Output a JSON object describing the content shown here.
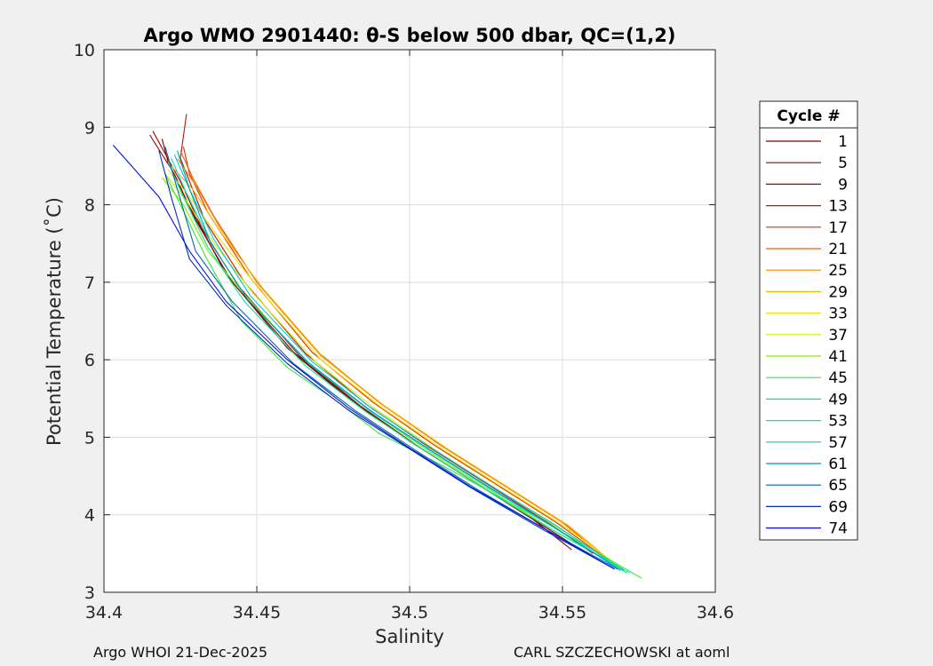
{
  "chart_data": {
    "type": "line",
    "title": "Argo WMO 2901440: θ-S below 500 dbar,  QC=(1,2)",
    "xlabel": "Salinity",
    "ylabel": "Potential Temperature (˚C)",
    "xlim": [
      34.4,
      34.6
    ],
    "ylim": [
      3,
      10
    ],
    "xticks": [
      34.4,
      34.45,
      34.5,
      34.55,
      34.6
    ],
    "xtick_labels": [
      "34.4",
      "34.45",
      "34.5",
      "34.55",
      "34.6"
    ],
    "yticks": [
      3,
      4,
      5,
      6,
      7,
      8,
      9,
      10
    ],
    "ytick_labels": [
      "3",
      "4",
      "5",
      "6",
      "7",
      "8",
      "9",
      "10"
    ],
    "grid": true,
    "legend_title": "Cycle #",
    "legend_position": "right-outside",
    "series": [
      {
        "name": "1",
        "color": "#7a0000",
        "x": [
          34.419,
          34.421,
          34.427,
          34.44,
          34.46,
          34.48,
          34.5,
          34.52,
          34.54,
          34.553
        ],
        "y": [
          8.85,
          8.55,
          8.05,
          7.1,
          6.15,
          5.5,
          4.95,
          4.45,
          3.95,
          3.55
        ]
      },
      {
        "name": "5",
        "color": "#8f0000",
        "x": [
          34.415,
          34.423,
          34.43,
          34.442,
          34.462,
          34.482,
          34.502,
          34.522,
          34.542,
          34.556
        ],
        "y": [
          8.9,
          8.4,
          7.8,
          7.0,
          6.1,
          5.45,
          4.9,
          4.4,
          3.9,
          3.55
        ]
      },
      {
        "name": "9",
        "color": "#a80000",
        "x": [
          34.416,
          34.425,
          34.432,
          34.444,
          34.464,
          34.484,
          34.504,
          34.524,
          34.544,
          34.558
        ],
        "y": [
          8.95,
          8.3,
          7.7,
          6.95,
          6.05,
          5.4,
          4.85,
          4.35,
          3.85,
          3.5
        ]
      },
      {
        "name": "13",
        "color": "#c41000",
        "x": [
          34.427,
          34.425,
          34.433,
          34.446,
          34.466,
          34.486,
          34.506,
          34.526,
          34.546,
          34.56
        ],
        "y": [
          9.17,
          8.6,
          7.8,
          7.0,
          6.08,
          5.42,
          4.88,
          4.38,
          3.88,
          3.5
        ]
      },
      {
        "name": "17",
        "color": "#dc3000",
        "x": [
          34.426,
          34.428,
          34.434,
          34.448,
          34.468,
          34.488,
          34.508,
          34.528,
          34.548,
          34.562
        ],
        "y": [
          8.75,
          8.4,
          7.9,
          7.05,
          6.1,
          5.45,
          4.9,
          4.4,
          3.9,
          3.5
        ]
      },
      {
        "name": "21",
        "color": "#ee5a00",
        "x": [
          34.425,
          34.429,
          34.436,
          34.45,
          34.47,
          34.49,
          34.51,
          34.53,
          34.55,
          34.564
        ],
        "y": [
          8.7,
          8.35,
          7.85,
          7.0,
          6.1,
          5.45,
          4.9,
          4.4,
          3.9,
          3.45
        ]
      },
      {
        "name": "25",
        "color": "#f58800",
        "x": [
          34.424,
          34.43,
          34.438,
          34.451,
          34.471,
          34.491,
          34.511,
          34.531,
          34.551,
          34.565
        ],
        "y": [
          8.6,
          8.25,
          7.7,
          6.95,
          6.05,
          5.42,
          4.88,
          4.38,
          3.88,
          3.42
        ]
      },
      {
        "name": "29",
        "color": "#f8b400",
        "x": [
          34.422,
          34.429,
          34.439,
          34.452,
          34.472,
          34.492,
          34.512,
          34.532,
          34.552,
          34.566
        ],
        "y": [
          8.5,
          8.2,
          7.6,
          6.92,
          6.02,
          5.4,
          4.86,
          4.36,
          3.86,
          3.4
        ]
      },
      {
        "name": "33",
        "color": "#f5e000",
        "x": [
          34.421,
          34.428,
          34.438,
          34.451,
          34.471,
          34.491,
          34.511,
          34.531,
          34.551,
          34.567
        ],
        "y": [
          8.45,
          8.1,
          7.55,
          6.9,
          6.0,
          5.38,
          4.84,
          4.34,
          3.84,
          3.38
        ]
      },
      {
        "name": "37",
        "color": "#c8f000",
        "x": [
          34.42,
          34.427,
          34.436,
          34.449,
          34.469,
          34.489,
          34.509,
          34.529,
          34.549,
          34.568
        ],
        "y": [
          8.4,
          8.05,
          7.5,
          6.85,
          5.98,
          5.36,
          4.82,
          4.32,
          3.82,
          3.35
        ]
      },
      {
        "name": "41",
        "color": "#84ee00",
        "x": [
          34.419,
          34.426,
          34.434,
          34.447,
          34.467,
          34.487,
          34.507,
          34.527,
          34.547,
          34.57
        ],
        "y": [
          8.35,
          8.0,
          7.4,
          6.8,
          5.95,
          5.34,
          4.8,
          4.3,
          3.8,
          3.3
        ]
      },
      {
        "name": "45",
        "color": "#3ce63c",
        "x": [
          34.42,
          34.425,
          34.433,
          34.445,
          34.46,
          34.475,
          34.49,
          34.51,
          34.54,
          34.576
        ],
        "y": [
          8.4,
          8.0,
          7.35,
          6.5,
          5.9,
          5.5,
          5.05,
          4.65,
          4.0,
          3.18
        ]
      },
      {
        "name": "49",
        "color": "#00e89a",
        "x": [
          34.421,
          34.426,
          34.434,
          34.446,
          34.466,
          34.486,
          34.506,
          34.526,
          34.546,
          34.572
        ],
        "y": [
          8.55,
          8.1,
          7.45,
          6.75,
          5.92,
          5.32,
          4.8,
          4.3,
          3.82,
          3.25
        ]
      },
      {
        "name": "53",
        "color": "#00e0d8",
        "x": [
          34.422,
          34.427,
          34.435,
          34.447,
          34.467,
          34.487,
          34.507,
          34.527,
          34.547,
          34.571
        ],
        "y": [
          8.6,
          8.15,
          7.5,
          6.78,
          5.95,
          5.34,
          4.82,
          4.32,
          3.84,
          3.25
        ]
      },
      {
        "name": "57",
        "color": "#00c8e0",
        "x": [
          34.423,
          34.428,
          34.436,
          34.448,
          34.468,
          34.488,
          34.508,
          34.528,
          34.548,
          34.57
        ],
        "y": [
          8.65,
          8.2,
          7.55,
          6.82,
          5.98,
          5.36,
          4.84,
          4.34,
          3.86,
          3.28
        ]
      },
      {
        "name": "61",
        "color": "#0098b0",
        "x": [
          34.424,
          34.428,
          34.435,
          34.447,
          34.467,
          34.487,
          34.507,
          34.527,
          34.547,
          34.569
        ],
        "y": [
          8.7,
          8.2,
          7.5,
          6.78,
          5.96,
          5.35,
          4.83,
          4.33,
          3.85,
          3.28
        ]
      },
      {
        "name": "65",
        "color": "#006aa8",
        "x": [
          34.42,
          34.424,
          34.43,
          34.442,
          34.462,
          34.482,
          34.502,
          34.522,
          34.545,
          34.568
        ],
        "y": [
          8.75,
          8.2,
          7.4,
          6.75,
          5.95,
          5.35,
          4.83,
          4.33,
          3.8,
          3.3
        ]
      },
      {
        "name": "69",
        "color": "#0030b8",
        "x": [
          34.418,
          34.422,
          34.428,
          34.44,
          34.46,
          34.48,
          34.5,
          34.52,
          34.544,
          34.567
        ],
        "y": [
          8.7,
          8.1,
          7.3,
          6.7,
          5.95,
          5.35,
          4.85,
          4.35,
          3.8,
          3.3
        ]
      },
      {
        "name": "74",
        "color": "#0010e0",
        "x": [
          34.403,
          34.418,
          34.428,
          34.44,
          34.46,
          34.48,
          34.5,
          34.52,
          34.544,
          34.567
        ],
        "y": [
          8.77,
          8.1,
          7.4,
          6.75,
          6.0,
          5.38,
          4.86,
          4.36,
          3.82,
          3.3
        ]
      }
    ]
  },
  "footer": {
    "left": "Argo WHOI 21-Dec-2025",
    "right": "CARL SZCZECHOWSKI at aoml"
  }
}
